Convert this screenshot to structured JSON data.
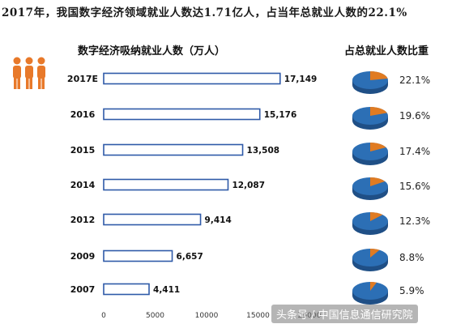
{
  "title": "2017年，我国数字经济领域就业人数达1.71亿人，占当年总就业人数的22.1%",
  "colors": {
    "bar_border": "#2f5aa8",
    "bar_fill": "#ffffff",
    "pie_blue": "#2c6fb5",
    "pie_orange": "#e07b22",
    "icon_orange": "#e8792a"
  },
  "icon": "people-group-icon",
  "watermark": "头条号 / 中国信息通信研究院",
  "chart_data": [
    {
      "type": "bar",
      "orientation": "horizontal",
      "title": "数字经济吸纳就业人数（万人）",
      "categories": [
        "2017E",
        "2016",
        "2015",
        "2014",
        "2012",
        "2009",
        "2007"
      ],
      "values": [
        17149,
        15176,
        13508,
        12087,
        9414,
        6657,
        4411
      ],
      "value_labels": [
        "17,149",
        "15,176",
        "13,508",
        "12,087",
        "9,414",
        "6,657",
        "4,411"
      ],
      "xlim": [
        0,
        20000
      ],
      "x_ticks": [
        "0",
        "5000",
        "10000",
        "15000",
        "20000"
      ],
      "grid": false
    },
    {
      "type": "pie",
      "title": "占总就业人数比重",
      "categories": [
        "2017E",
        "2016",
        "2015",
        "2014",
        "2012",
        "2009",
        "2007"
      ],
      "values": [
        22.1,
        19.6,
        17.4,
        15.6,
        12.3,
        8.8,
        5.9
      ],
      "labels": [
        "22.1%",
        "19.6%",
        "17.4%",
        "15.6%",
        "12.3%",
        "8.8%",
        "5.9%"
      ]
    }
  ]
}
